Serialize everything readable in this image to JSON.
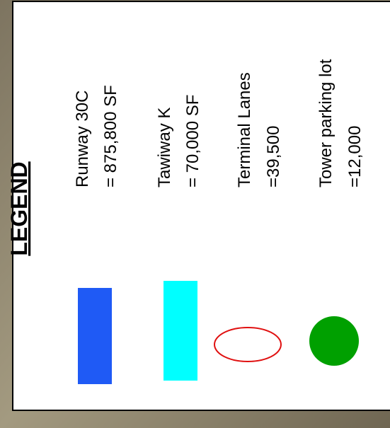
{
  "legend": {
    "title": "LEGEND",
    "items": [
      {
        "lines": [
          "Runway 30C",
          "= 875,800 SF"
        ]
      },
      {
        "lines": [
          "Tawiway K",
          "= 70,000 SF"
        ]
      },
      {
        "lines": [
          "Terminal Lanes",
          "=39,500"
        ]
      },
      {
        "lines": [
          "Tower parking lot",
          "=12,000"
        ]
      }
    ]
  }
}
